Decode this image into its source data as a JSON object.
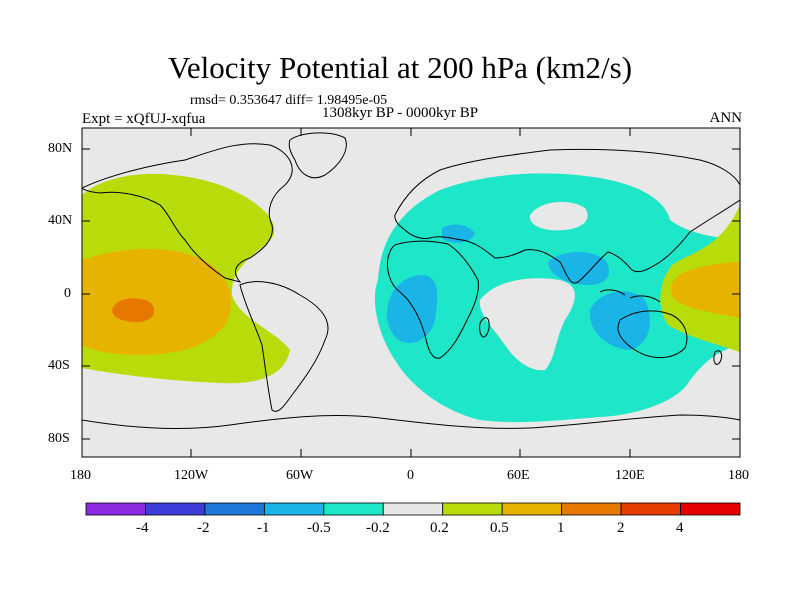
{
  "title": "Velocity Potential at 200 hPa (km2/s)",
  "stats": "rmsd= 0.353647 diff= 1.98495e-05",
  "period": "1308kyr BP - 0000kyr BP",
  "experiment": "Expt = xQfUJ-xqfua",
  "season": "ANN",
  "lat_labels": [
    "80N",
    "40N",
    "0",
    "40S",
    "80S"
  ],
  "lon_labels": [
    "180",
    "120W",
    "60W",
    "0",
    "60E",
    "120E",
    "180"
  ],
  "colorbar": {
    "colors": [
      "#8a2be2",
      "#3c3cd8",
      "#1e78d8",
      "#1ab4e6",
      "#1ee6c8",
      "#e6e6e6",
      "#b8dc0a",
      "#e6b400",
      "#e67800",
      "#e63c00",
      "#e60000"
    ],
    "labels": [
      "-4",
      "-2",
      "-1",
      "-0.5",
      "-0.2",
      "0.2",
      "0.5",
      "1",
      "2",
      "4"
    ]
  },
  "map_colors": {
    "ocean_bg": "#e8e8e8",
    "cyan": "#1ee6c8",
    "blue": "#1ab4e6",
    "green": "#b8dc0a",
    "yellow": "#e6b400",
    "orange": "#e67800",
    "coast": "#000000"
  }
}
